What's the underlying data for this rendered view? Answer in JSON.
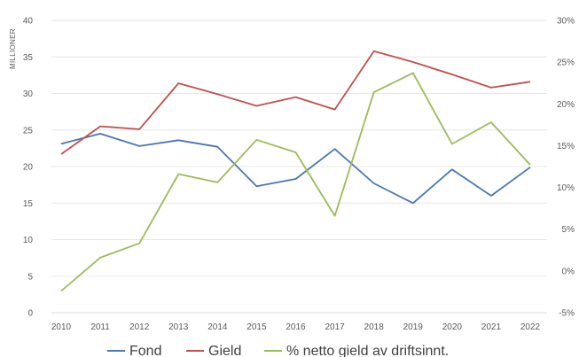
{
  "chart_data": {
    "type": "line",
    "ylabel": "MILLIONER",
    "x": [
      "2010",
      "2011",
      "2012",
      "2013",
      "2014",
      "2015",
      "2016",
      "2017",
      "2018",
      "2019",
      "2020",
      "2021",
      "2022"
    ],
    "y_left_ticks": [
      "0",
      "5",
      "10",
      "15",
      "20",
      "25",
      "30",
      "35",
      "40"
    ],
    "y_right_ticks": [
      "-5%",
      "0%",
      "5%",
      "10%",
      "15%",
      "20%",
      "25%",
      "30%"
    ],
    "ylim_left": [
      0,
      40
    ],
    "ylim_right": [
      -5,
      30
    ],
    "grid": "horizontal",
    "legend_position": "bottom",
    "series": [
      {
        "name": "Fond",
        "axis": "left",
        "color": "#4a76b4",
        "values": [
          23.1,
          24.5,
          22.8,
          23.6,
          22.7,
          17.3,
          18.3,
          22.4,
          17.7,
          15.0,
          19.6,
          16.0,
          19.9
        ]
      },
      {
        "name": "Gield",
        "axis": "left",
        "color": "#c0504d",
        "values": [
          21.7,
          25.5,
          25.1,
          31.4,
          29.9,
          28.3,
          29.5,
          27.8,
          35.8,
          34.3,
          32.6,
          30.8,
          31.6
        ]
      },
      {
        "name": "% netto gield av driftsinnt.",
        "axis": "right",
        "color": "#9bbb59",
        "values": [
          -2.4,
          1.6,
          3.3,
          11.6,
          10.6,
          15.7,
          14.2,
          6.6,
          21.4,
          23.7,
          15.2,
          17.8,
          12.7
        ]
      }
    ]
  }
}
